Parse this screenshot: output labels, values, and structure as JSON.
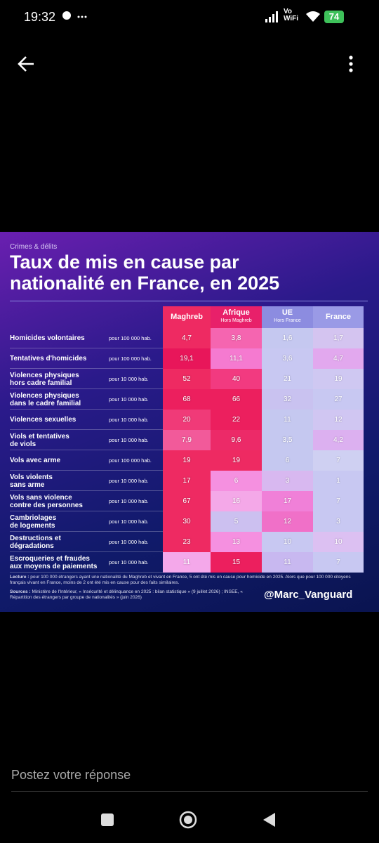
{
  "status_bar": {
    "time": "19:32",
    "network": "Vo\nWiFi",
    "battery": "74"
  },
  "infographic": {
    "category": "Crimes & délits",
    "title": "Taux de mis en cause par\nnationalité en France, en 2025",
    "columns": [
      {
        "name": "Maghreb"
      },
      {
        "name": "Afrique",
        "sub": "Hors Maghreb"
      },
      {
        "name": "UE",
        "sub": "Hors France"
      },
      {
        "name": "France"
      }
    ],
    "rows": [
      {
        "label": "Homicides volontaires",
        "unit": "pour 100 000 hab.",
        "values": [
          "4,7",
          "3,8",
          "1,6",
          "1,7"
        ],
        "colors": [
          "#ee2a62",
          "#f565b0",
          "#c5c8f0",
          "#d4c4f0"
        ]
      },
      {
        "label": "Tentatives d'homicides",
        "unit": "pour 100 000 hab.",
        "values": [
          "19,1",
          "11,1",
          "3,6",
          "4,7"
        ],
        "colors": [
          "#e8165a",
          "#f57ad0",
          "#c8c8f2",
          "#e2a8ee"
        ]
      },
      {
        "label": "Violences physiques\nhors cadre familial",
        "unit": "pour 10 000 hab.",
        "values": [
          "52",
          "40",
          "21",
          "19"
        ],
        "colors": [
          "#ee2a62",
          "#f23a80",
          "#c8c8f2",
          "#cfc8f2"
        ]
      },
      {
        "label": "Violences physiques\ndans le cadre familial",
        "unit": "pour 10 000 hab.",
        "values": [
          "68",
          "66",
          "32",
          "27"
        ],
        "colors": [
          "#ec1f5e",
          "#ec1f5e",
          "#c9c2f0",
          "#c8c8f2"
        ]
      },
      {
        "label": "Violences sexuelles",
        "unit": "pour 10 000 hab.",
        "values": [
          "20",
          "22",
          "11",
          "12"
        ],
        "colors": [
          "#f03a78",
          "#ec1f5e",
          "#c5c8f0",
          "#d0c6f2"
        ]
      },
      {
        "label": "Viols et tentatives\nde viols",
        "unit": "pour 10 000 hab.",
        "values": [
          "7,9",
          "9,6",
          "3,5",
          "4,2"
        ],
        "colors": [
          "#f25a9a",
          "#ec2a68",
          "#c5c8f0",
          "#dcb0f0"
        ]
      },
      {
        "label": "Vols avec arme",
        "unit": "pour 100 000 hab.",
        "values": [
          "19",
          "19",
          "6",
          "7"
        ],
        "colors": [
          "#ee2a62",
          "#ee2a62",
          "#c5c8f0",
          "#cfd0f2"
        ]
      },
      {
        "label": "Vols violents\nsans arme",
        "unit": "pour 10 000 hab.",
        "values": [
          "17",
          "6",
          "3",
          "1"
        ],
        "colors": [
          "#ee2a62",
          "#f590e0",
          "#d8b8f0",
          "#c8c8f2"
        ]
      },
      {
        "label": "Vols sans violence\ncontre des personnes",
        "unit": "pour 10 000 hab.",
        "values": [
          "67",
          "16",
          "17",
          "7"
        ],
        "colors": [
          "#ee2a62",
          "#f4a8e8",
          "#f080d8",
          "#c8c8f2"
        ]
      },
      {
        "label": "Cambriolages\nde logements",
        "unit": "pour 10 000 hab.",
        "values": [
          "30",
          "5",
          "12",
          "3"
        ],
        "colors": [
          "#ee2a62",
          "#ccc0f0",
          "#f070c8",
          "#c8c8f2"
        ]
      },
      {
        "label": "Destructions et\ndégradations",
        "unit": "pour 10 000 hab.",
        "values": [
          "23",
          "13",
          "10",
          "10"
        ],
        "colors": [
          "#ee2a62",
          "#f590e0",
          "#c8c8f2",
          "#dcc0f2"
        ]
      },
      {
        "label": "Escroqueries et fraudes\naux moyens de paiements",
        "unit": "pour 10 000 hab.",
        "values": [
          "11",
          "15",
          "11",
          "7"
        ],
        "colors": [
          "#f4a8ea",
          "#ec1f5e",
          "#c8b8f0",
          "#c8c8f2"
        ]
      }
    ],
    "lecture": {
      "label": "Lecture :",
      "text": "pour 100 000 étrangers ayant une nationalité du Maghreb et vivant en France, 5 ont été mis en cause pour homicide en 2025. Alors que pour 100 000 citoyens français vivant en France, moins de 2 ont été mis en cause pour des faits similaires."
    },
    "sources": {
      "label": "Sources :",
      "text": "Ministère de l'Intérieur, « Insécurité et délinquance en 2025 : bilan statistique » (9 juillet 2026) ; INSEE, « Répartition des étrangers par groupe de nationalités » (juin 2026)"
    },
    "handle": "@Marc_Vanguard"
  },
  "reply_placeholder": "Postez votre réponse"
}
